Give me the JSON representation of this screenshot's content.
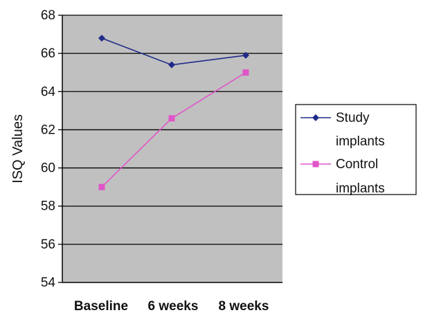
{
  "chart_data": {
    "type": "line",
    "title": "",
    "xlabel": "",
    "ylabel": "ISQ Values",
    "categories": [
      "Baseline",
      "6 weeks",
      "8 weeks"
    ],
    "ylim": [
      54,
      68
    ],
    "yticks": [
      "54",
      "56",
      "58",
      "60",
      "62",
      "64",
      "66",
      "68"
    ],
    "grid": true,
    "legend_position": "right",
    "plot_background": "#c0c0c0",
    "series": [
      {
        "name_lines": [
          "Study",
          "implants"
        ],
        "values": [
          66.8,
          65.4,
          65.9
        ],
        "color": "#1f2a8a",
        "marker": "diamond"
      },
      {
        "name_lines": [
          "Control",
          "implants"
        ],
        "values": [
          59.0,
          62.6,
          65.0
        ],
        "color": "#e055c8",
        "marker": "square"
      }
    ]
  }
}
